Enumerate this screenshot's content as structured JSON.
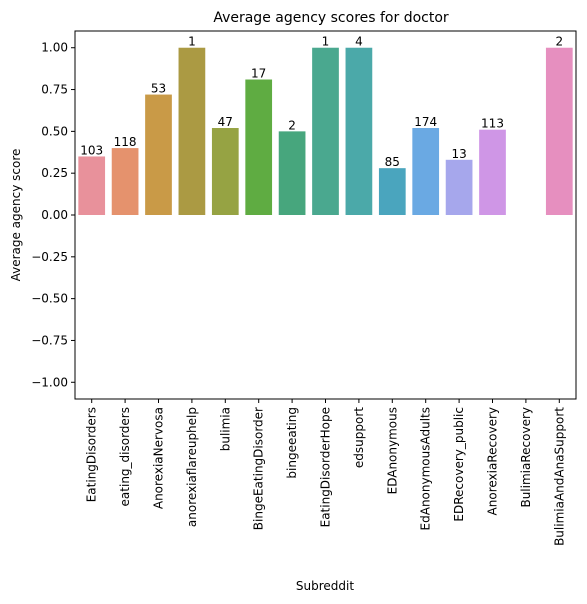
{
  "chart_data": {
    "type": "bar",
    "title": "Average agency scores for doctor",
    "xlabel": "Subreddit",
    "ylabel": "Average agency score",
    "ylim": [
      -1.1,
      1.1
    ],
    "yticks": [
      "−1.00",
      "−0.75",
      "−0.50",
      "−0.25",
      "0.00",
      "0.25",
      "0.50",
      "0.75",
      "1.00"
    ],
    "ytick_values": [
      -1.0,
      -0.75,
      -0.5,
      -0.25,
      0.0,
      0.25,
      0.5,
      0.75,
      1.0
    ],
    "categories": [
      "EatingDisorders",
      "eating_disorders",
      "AnorexiaNervosa",
      "anorexiaflareuphelp",
      "bulimia",
      "BingeEatingDisorder",
      "bingeeating",
      "EatingDisorderHope",
      "edsupport",
      "EDAnonymous",
      "EdAnonymousAdults",
      "EDRecovery_public",
      "AnorexiaRecovery",
      "BulimiaRecovery",
      "BulimiaAndAnaSupport"
    ],
    "values": [
      0.35,
      0.4,
      0.72,
      1.0,
      0.52,
      0.81,
      0.5,
      1.0,
      1.0,
      0.28,
      0.52,
      0.33,
      0.51,
      null,
      1.0
    ],
    "data_labels": [
      "103",
      "118",
      "53",
      "1",
      "47",
      "17",
      "2",
      "1",
      "4",
      "85",
      "174",
      "13",
      "113",
      "",
      "2"
    ],
    "colors": [
      "#e8919b",
      "#e5926d",
      "#c99a47",
      "#ab9a43",
      "#96a343",
      "#5fac42",
      "#47a67d",
      "#4aa88f",
      "#4ba9a9",
      "#4aa5be",
      "#6aa9e3",
      "#a6a7ec",
      "#cf96e6",
      "#e38fd7",
      "#e68fbf"
    ],
    "grid": false,
    "legend": "none"
  }
}
